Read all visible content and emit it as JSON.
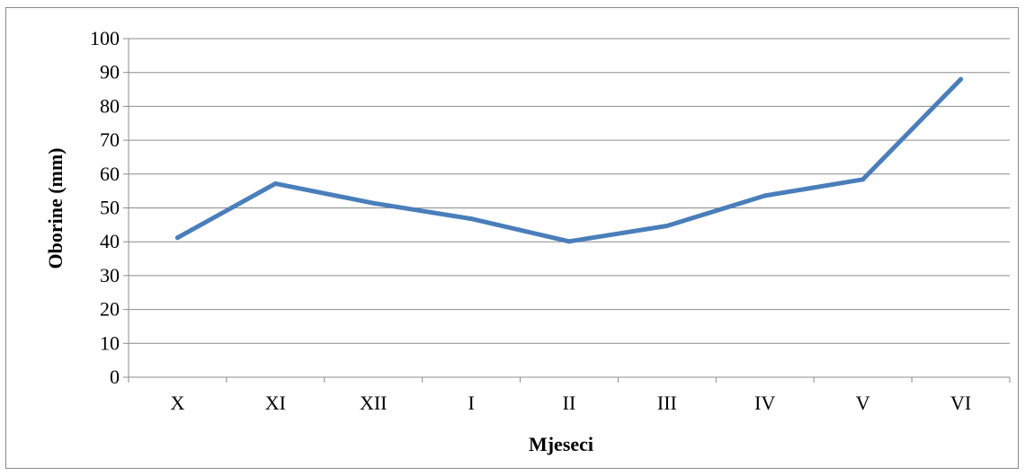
{
  "chart_data": {
    "type": "line",
    "xlabel": "Mjeseci",
    "ylabel": "Oborine (mm)",
    "categories": [
      "X",
      "XI",
      "XII",
      "I",
      "II",
      "III",
      "IV",
      "V",
      "VI"
    ],
    "series": [
      {
        "values": [
          41.2,
          57.2,
          51.4,
          46.8,
          40.1,
          44.7,
          53.6,
          58.4,
          88.0
        ]
      }
    ],
    "ylim": [
      0,
      100
    ],
    "yticks": [
      0,
      10,
      20,
      30,
      40,
      50,
      60,
      70,
      80,
      90,
      100
    ],
    "grid": true,
    "legend": "none",
    "line_color": "#4a7ebb"
  }
}
